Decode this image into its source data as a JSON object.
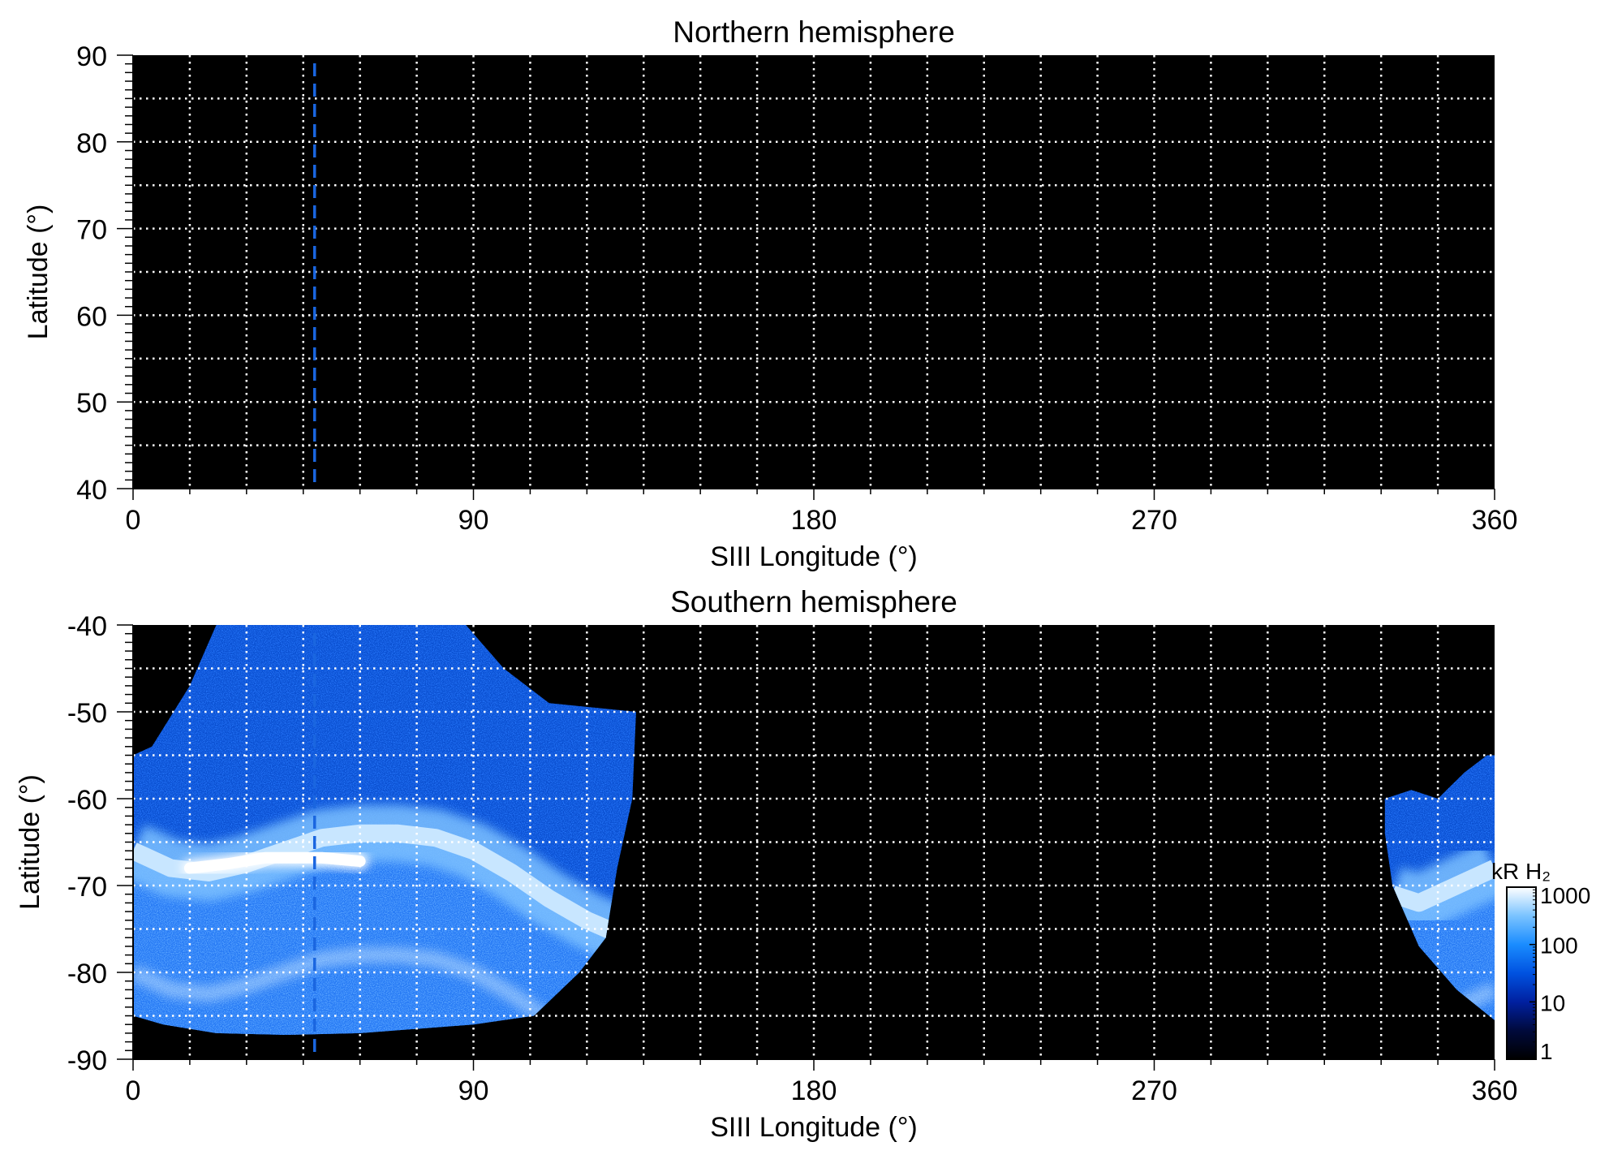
{
  "chart_data": [
    {
      "type": "heatmap",
      "title": "Northern hemisphere",
      "xlabel": "SIII Longitude (°)",
      "ylabel": "Latitude (°)",
      "xlim": [
        0,
        360
      ],
      "ylim": [
        40,
        90
      ],
      "xticks": [
        0,
        90,
        180,
        270,
        360
      ],
      "yticks": [
        40,
        50,
        60,
        70,
        80,
        90
      ],
      "grid": true,
      "background": "#000000",
      "marker_longitude": 48,
      "marker_color": "#1a66e0",
      "emission_regions": []
    },
    {
      "type": "heatmap",
      "title": "Southern hemisphere",
      "xlabel": "SIII Longitude (°)",
      "ylabel": "Latitude (°)",
      "xlim": [
        0,
        360
      ],
      "ylim": [
        -90,
        -40
      ],
      "xticks": [
        0,
        90,
        180,
        270,
        360
      ],
      "yticks": [
        -90,
        -80,
        -70,
        -60,
        -50,
        -40
      ],
      "grid": true,
      "background": "#000000",
      "marker_longitude": 48,
      "marker_color": "#1a66e0",
      "emission_regions": [
        {
          "name": "coverage-west",
          "outline": [
            [
              0,
              -55
            ],
            [
              5,
              -54
            ],
            [
              15,
              -47
            ],
            [
              22,
              -40
            ],
            [
              88,
              -40
            ],
            [
              98,
              -45
            ],
            [
              110,
              -49
            ],
            [
              133,
              -50
            ],
            [
              132,
              -60
            ],
            [
              128,
              -68
            ],
            [
              125,
              -76
            ],
            [
              118,
              -80
            ],
            [
              106,
              -85
            ],
            [
              90,
              -86
            ],
            [
              60,
              -87
            ],
            [
              40,
              -87.2
            ],
            [
              22,
              -87
            ],
            [
              8,
              -86
            ],
            [
              0,
              -85
            ]
          ],
          "main_oval": [
            [
              0,
              -66
            ],
            [
              10,
              -68
            ],
            [
              20,
              -68.5
            ],
            [
              30,
              -67.5
            ],
            [
              40,
              -66
            ],
            [
              50,
              -64.5
            ],
            [
              60,
              -64
            ],
            [
              70,
              -64
            ],
            [
              80,
              -64.5
            ],
            [
              90,
              -66
            ],
            [
              100,
              -68.5
            ],
            [
              110,
              -71.5
            ],
            [
              120,
              -74
            ],
            [
              128,
              -75.5
            ]
          ],
          "peak_oval_segment": [
            [
              15,
              -68
            ],
            [
              25,
              -67.5
            ],
            [
              35,
              -66.8
            ],
            [
              50,
              -66.8
            ],
            [
              60,
              -67.2
            ]
          ]
        },
        {
          "name": "coverage-east",
          "outline": [
            [
              331,
              -60
            ],
            [
              338,
              -59
            ],
            [
              345,
              -60
            ],
            [
              352,
              -57
            ],
            [
              358,
              -55
            ],
            [
              360,
              -55
            ],
            [
              360,
              -85.5
            ],
            [
              350,
              -82
            ],
            [
              340,
              -77
            ],
            [
              333,
              -70
            ],
            [
              331,
              -64
            ]
          ],
          "main_oval": [
            [
              333,
              -71
            ],
            [
              340,
              -72
            ],
            [
              350,
              -70
            ],
            [
              360,
              -68
            ]
          ]
        }
      ]
    }
  ],
  "colorbar": {
    "label": "kR H₂",
    "scale": "log",
    "ticks": [
      "1",
      "10",
      "100",
      "1000"
    ],
    "range": [
      1,
      1000
    ],
    "colors": [
      "#000000",
      "#000a3c",
      "#0020a0",
      "#0052e0",
      "#1a8cff",
      "#7ac3ff",
      "#ffffff"
    ]
  }
}
